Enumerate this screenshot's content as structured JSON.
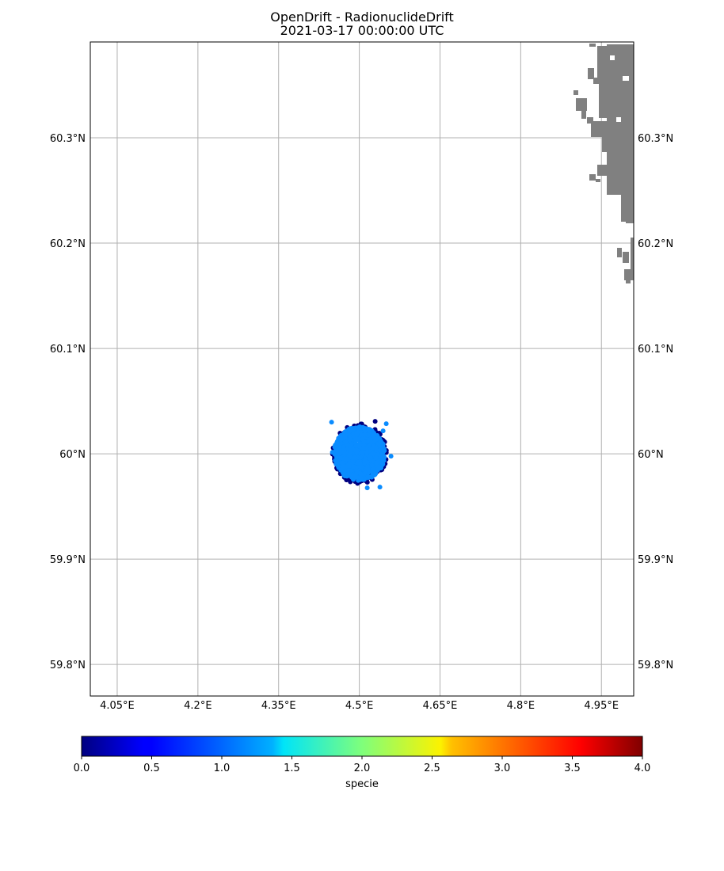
{
  "title": {
    "line1": "OpenDrift - RadionuclideDrift",
    "line2": "2021-03-17 00:00:00 UTC"
  },
  "colors": {
    "land": "#808080",
    "grid": "#b0b0b0",
    "frame": "#000000",
    "particle_dark": "#000080",
    "particle_light": "#0a8cff"
  },
  "map": {
    "lon_range": [
      4.0,
      5.01
    ],
    "lat_range": [
      59.77,
      60.391
    ],
    "lon_ticks": [
      {
        "value": 4.05,
        "label": "4.05°E"
      },
      {
        "value": 4.2,
        "label": "4.2°E"
      },
      {
        "value": 4.35,
        "label": "4.35°E"
      },
      {
        "value": 4.5,
        "label": "4.5°E"
      },
      {
        "value": 4.65,
        "label": "4.65°E"
      },
      {
        "value": 4.8,
        "label": "4.8°E"
      },
      {
        "value": 4.95,
        "label": "4.95°E"
      }
    ],
    "lat_ticks": [
      {
        "value": 59.8,
        "label": "59.8°N"
      },
      {
        "value": 59.9,
        "label": "59.9°N"
      },
      {
        "value": 60.0,
        "label": "60°N"
      },
      {
        "value": 60.1,
        "label": "60.1°N"
      },
      {
        "value": 60.2,
        "label": "60.2°N"
      },
      {
        "value": 60.3,
        "label": "60.3°N"
      }
    ],
    "grid": true,
    "particle_cloud": {
      "center_lon": 4.5,
      "center_lat": 60.0,
      "specie_values": [
        0,
        1
      ],
      "lon_extent": [
        4.45,
        4.56
      ],
      "lat_extent": [
        59.967,
        60.031
      ]
    }
  },
  "colorbar": {
    "label": "specie",
    "range": [
      0.0,
      4.0
    ],
    "colormap": "jet",
    "ticks": [
      {
        "value": 0.0,
        "label": "0.0"
      },
      {
        "value": 0.5,
        "label": "0.5"
      },
      {
        "value": 1.0,
        "label": "1.0"
      },
      {
        "value": 1.5,
        "label": "1.5"
      },
      {
        "value": 2.0,
        "label": "2.0"
      },
      {
        "value": 2.5,
        "label": "2.5"
      },
      {
        "value": 3.0,
        "label": "3.0"
      },
      {
        "value": 3.5,
        "label": "3.5"
      },
      {
        "value": 4.0,
        "label": "4.0"
      }
    ]
  }
}
